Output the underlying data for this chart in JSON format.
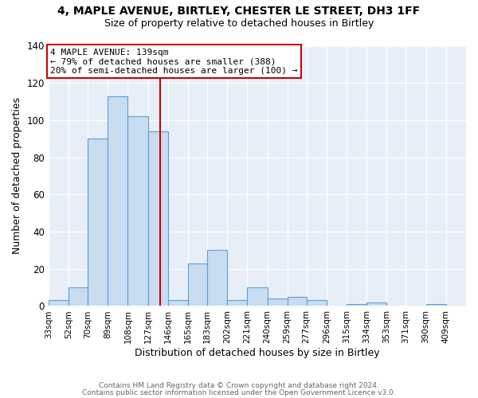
{
  "title": "4, MAPLE AVENUE, BIRTLEY, CHESTER LE STREET, DH3 1FF",
  "subtitle": "Size of property relative to detached houses in Birtley",
  "xlabel": "Distribution of detached houses by size in Birtley",
  "ylabel": "Number of detached properties",
  "bin_labels": [
    "33sqm",
    "52sqm",
    "70sqm",
    "89sqm",
    "108sqm",
    "127sqm",
    "146sqm",
    "165sqm",
    "183sqm",
    "202sqm",
    "221sqm",
    "240sqm",
    "259sqm",
    "277sqm",
    "296sqm",
    "315sqm",
    "334sqm",
    "353sqm",
    "371sqm",
    "390sqm",
    "409sqm"
  ],
  "bar_heights": [
    3,
    10,
    90,
    113,
    102,
    94,
    3,
    23,
    30,
    3,
    10,
    4,
    5,
    3,
    0,
    1,
    2,
    0,
    0,
    1,
    0
  ],
  "bar_color": "#c9ddf0",
  "bar_edge_color": "#5a9fd4",
  "marker_value": 139,
  "marker_line_color": "#cc0000",
  "annotation_line1": "4 MAPLE AVENUE: 139sqm",
  "annotation_line2": "← 79% of detached houses are smaller (388)",
  "annotation_line3": "20% of semi-detached houses are larger (100) →",
  "annotation_box_edge": "#cc0000",
  "ylim": [
    0,
    140
  ],
  "yticks": [
    0,
    20,
    40,
    60,
    80,
    100,
    120,
    140
  ],
  "footer1": "Contains HM Land Registry data © Crown copyright and database right 2024.",
  "footer2": "Contains public sector information licensed under the Open Government Licence v3.0.",
  "plot_bg_color": "#e8eef8",
  "fig_bg_color": "#ffffff",
  "bin_edges": [
    33,
    52,
    70,
    89,
    108,
    127,
    146,
    165,
    183,
    202,
    221,
    240,
    259,
    277,
    296,
    315,
    334,
    353,
    371,
    390,
    409,
    428
  ]
}
